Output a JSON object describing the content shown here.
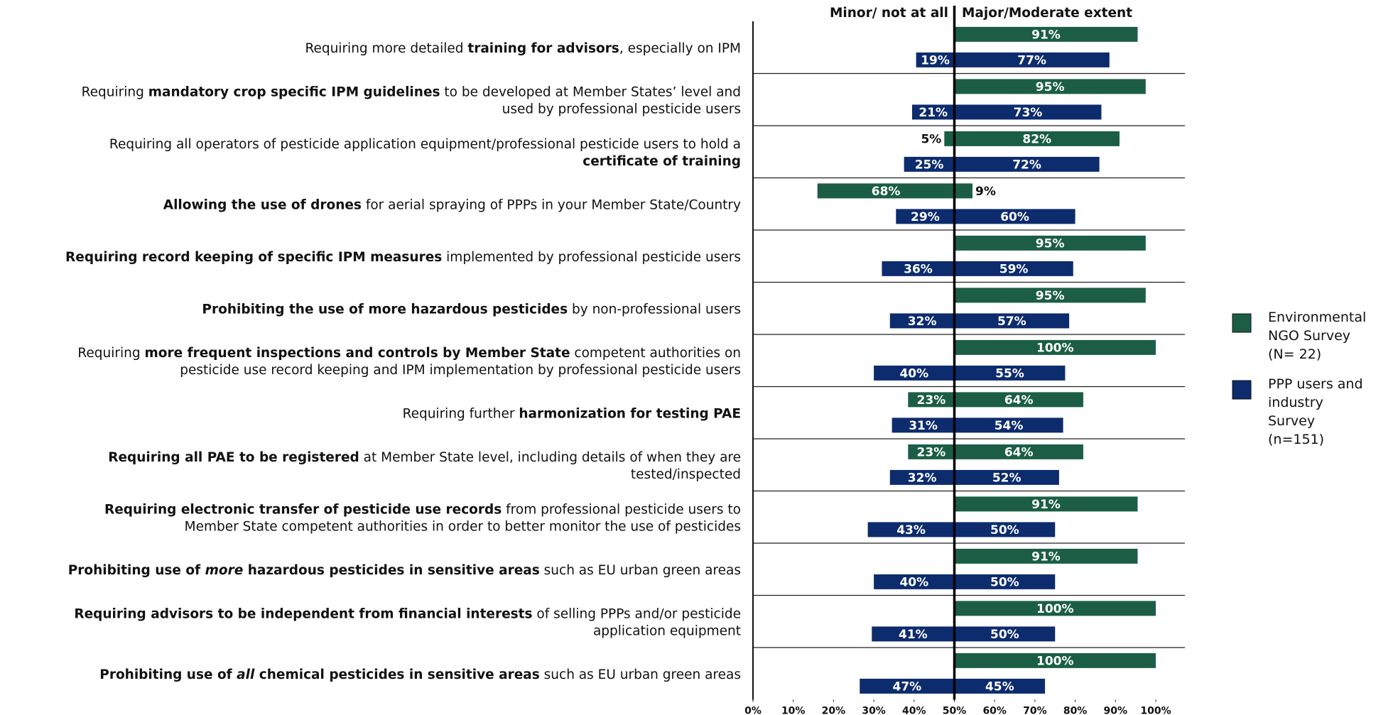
{
  "chart_data": {
    "type": "diverging-bar",
    "header_left": "Minor/ not at all",
    "header_right": "Major/Moderate extent",
    "categories": [
      {
        "lines": [
          [
            {
              "text": "Requiring more detailed "
            },
            {
              "text": "training for advisors",
              "bold": true
            },
            {
              "text": ", especially on IPM"
            }
          ]
        ]
      },
      {
        "lines": [
          [
            {
              "text": "Requiring "
            },
            {
              "text": "mandatory crop specific IPM guidelines",
              "bold": true
            },
            {
              "text": " to be developed at Member States’ level and"
            }
          ],
          [
            {
              "text": "used by professional pesticide users"
            }
          ]
        ]
      },
      {
        "lines": [
          [
            {
              "text": "Requiring all operators of pesticide application equipment/professional pesticide users to hold a"
            }
          ],
          [
            {
              "text": "certificate of training",
              "bold": true
            }
          ]
        ]
      },
      {
        "lines": [
          [
            {
              "text": "Allowing the use of drones",
              "bold": true
            },
            {
              "text": " for aerial spraying of PPPs in your Member State/Country"
            }
          ]
        ]
      },
      {
        "lines": [
          [
            {
              "text": "Requiring record keeping of specific IPM measures",
              "bold": true
            },
            {
              "text": " implemented by professional pesticide users"
            }
          ]
        ]
      },
      {
        "lines": [
          [
            {
              "text": "Prohibiting the use of more hazardous pesticides",
              "bold": true
            },
            {
              "text": " by non-professional users"
            }
          ]
        ]
      },
      {
        "lines": [
          [
            {
              "text": "Requiring "
            },
            {
              "text": "more frequent inspections and controls by Member State",
              "bold": true
            },
            {
              "text": " competent authorities on"
            }
          ],
          [
            {
              "text": "pesticide use record keeping and IPM implementation by professional pesticide users"
            }
          ]
        ]
      },
      {
        "lines": [
          [
            {
              "text": "Requiring further "
            },
            {
              "text": "harmonization for testing PAE",
              "bold": true
            }
          ]
        ]
      },
      {
        "lines": [
          [
            {
              "text": "Requiring all PAE to be registered",
              "bold": true
            },
            {
              "text": " at Member State level, including details of when they are"
            }
          ],
          [
            {
              "text": "tested/inspected"
            }
          ]
        ]
      },
      {
        "lines": [
          [
            {
              "text": "Requiring electronic transfer of pesticide use records",
              "bold": true
            },
            {
              "text": " from professional pesticide users to"
            }
          ],
          [
            {
              "text": "Member State competent authorities in order to better monitor the use of pesticides"
            }
          ]
        ]
      },
      {
        "lines": [
          [
            {
              "text": "Prohibiting use of ",
              "bold": true
            },
            {
              "text": "more",
              "bold": true,
              "italic": true
            },
            {
              "text": " hazardous pesticides in sensitive areas",
              "bold": true
            },
            {
              "text": " such as EU urban green areas"
            }
          ]
        ]
      },
      {
        "lines": [
          [
            {
              "text": "Requiring advisors to be independent from financial interests",
              "bold": true
            },
            {
              "text": " of selling PPPs and/or pesticide"
            }
          ],
          [
            {
              "text": "application equipment"
            }
          ]
        ]
      },
      {
        "lines": [
          [
            {
              "text": "Prohibiting use of ",
              "bold": true
            },
            {
              "text": "all",
              "bold": true,
              "italic": true
            },
            {
              "text": " chemical pesticides in sensitive areas",
              "bold": true
            },
            {
              "text": " such as EU urban green areas"
            }
          ]
        ]
      }
    ],
    "series": [
      {
        "name": "Environmental\nNGO Survey\n(N= 22)",
        "color": "#1b5e45",
        "minor": [
          null,
          null,
          5,
          68,
          null,
          null,
          null,
          23,
          23,
          null,
          null,
          null,
          null
        ],
        "minor_labels": [
          null,
          null,
          "5%",
          "68%",
          null,
          null,
          null,
          "23%",
          "23%",
          null,
          null,
          null,
          null
        ],
        "values": [
          91,
          95,
          82,
          9,
          95,
          95,
          100,
          64,
          64,
          91,
          91,
          100,
          100
        ],
        "value_labels": [
          "91%",
          "95%",
          "82%",
          "9%",
          "95%",
          "95%",
          "100%",
          "64%",
          "64%",
          "91%",
          "91%",
          "100%",
          "100%"
        ]
      },
      {
        "name": "PPP users and\nindustry\nSurvey\n(n=151)",
        "color": "#0d2c6e",
        "minor": [
          19,
          21,
          25,
          29,
          36,
          32,
          40,
          31,
          32,
          43,
          40,
          41,
          47
        ],
        "minor_labels": [
          "19%",
          "21%",
          "25%",
          "29%",
          "36%",
          "32%",
          "40%",
          "31%",
          "32%",
          "43%",
          "40%",
          "41%",
          "47%"
        ],
        "values": [
          77,
          73,
          72,
          60,
          59,
          57,
          55,
          54,
          52,
          50,
          50,
          50,
          45
        ],
        "value_labels": [
          "77%",
          "73%",
          "72%",
          "60%",
          "59%",
          "57%",
          "55%",
          "54%",
          "52%",
          "50%",
          "50%",
          "50%",
          "45%"
        ]
      }
    ],
    "xlim": [
      0,
      100
    ],
    "xticks": [
      {
        "value": 0,
        "label": "0%"
      },
      {
        "value": 10,
        "label": "10%"
      },
      {
        "value": 20,
        "label": "20%"
      },
      {
        "value": 30,
        "label": "30%"
      },
      {
        "value": 40,
        "label": "40%"
      },
      {
        "value": 50,
        "label": "50%"
      },
      {
        "value": 60,
        "label": "60%"
      },
      {
        "value": 70,
        "label": "70%"
      },
      {
        "value": 80,
        "label": "80%"
      },
      {
        "value": 90,
        "label": "90%"
      },
      {
        "value": 100,
        "label": "100%"
      }
    ]
  }
}
